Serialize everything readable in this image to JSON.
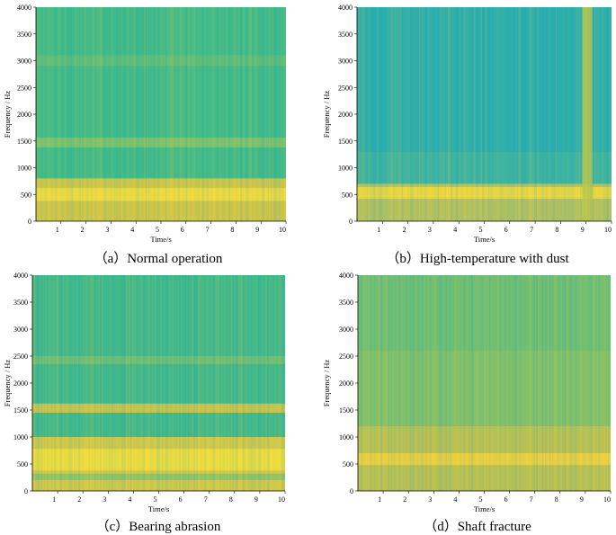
{
  "chart_data": [
    {
      "type": "heatmap",
      "id": "a",
      "caption": "（a）Normal operation",
      "xlabel": "Time/s",
      "ylabel": "Frequency / Hz",
      "xlim": [
        0,
        10
      ],
      "ylim": [
        0,
        4000
      ],
      "xticks": [
        1,
        2,
        3,
        4,
        5,
        6,
        7,
        8,
        9,
        10
      ],
      "yticks": [
        0,
        500,
        1000,
        1500,
        2000,
        2500,
        3000,
        3500,
        4000
      ],
      "base_color": "#3fbb8a",
      "bands": [
        {
          "from": 0,
          "to": 800,
          "color": "#f0c93a",
          "opacity": 0.85
        },
        {
          "from": 380,
          "to": 620,
          "color": "#ffe23c",
          "opacity": 0.8
        },
        {
          "from": 1380,
          "to": 1560,
          "color": "#a9c85a",
          "opacity": 0.6
        },
        {
          "from": 2900,
          "to": 3100,
          "color": "#8fc06a",
          "opacity": 0.4
        }
      ],
      "regions": []
    },
    {
      "type": "heatmap",
      "id": "b",
      "caption": "（b）High-temperature with dust",
      "xlabel": "Time/s",
      "ylabel": "Frequency / Hz",
      "xlim": [
        0,
        10
      ],
      "ylim": [
        0,
        4000
      ],
      "xticks": [
        1,
        2,
        3,
        4,
        5,
        6,
        7,
        8,
        9,
        10
      ],
      "yticks": [
        0,
        500,
        1000,
        1500,
        2000,
        2500,
        3000,
        3500,
        4000
      ],
      "base_color": "#2aaeb0",
      "bands": [
        {
          "from": 0,
          "to": 700,
          "color": "#e8c844",
          "opacity": 0.75
        },
        {
          "from": 420,
          "to": 640,
          "color": "#ffdf3a",
          "opacity": 0.8
        },
        {
          "from": 700,
          "to": 1300,
          "color": "#4cb898",
          "opacity": 0.5
        }
      ],
      "regions": [
        {
          "t0": 8.85,
          "t1": 9.25,
          "f0": 0,
          "f1": 4000,
          "color": "#c2c84a",
          "opacity": 0.85
        }
      ]
    },
    {
      "type": "heatmap",
      "id": "c",
      "caption": "（c）Bearing abrasion",
      "xlabel": "Time/s",
      "ylabel": "Frequency / Hz",
      "xlim": [
        0,
        10
      ],
      "ylim": [
        0,
        4000
      ],
      "xticks": [
        1,
        2,
        3,
        4,
        5,
        6,
        7,
        8,
        9,
        10
      ],
      "yticks": [
        0,
        500,
        1000,
        1500,
        2000,
        2500,
        3000,
        3500,
        4000
      ],
      "base_color": "#42b98c",
      "bands": [
        {
          "from": 0,
          "to": 1000,
          "color": "#f2cc3c",
          "opacity": 0.85
        },
        {
          "from": 380,
          "to": 780,
          "color": "#ffe43a",
          "opacity": 0.8
        },
        {
          "from": 200,
          "to": 320,
          "color": "#66c07a",
          "opacity": 0.55
        },
        {
          "from": 1450,
          "to": 1620,
          "color": "#eec840",
          "opacity": 0.8
        },
        {
          "from": 2350,
          "to": 2500,
          "color": "#9cc460",
          "opacity": 0.5
        }
      ],
      "regions": []
    },
    {
      "type": "heatmap",
      "id": "d",
      "caption": "（d）Shaft fracture",
      "xlabel": "Time/s",
      "ylabel": "Frequency / Hz",
      "xlim": [
        0,
        10
      ],
      "ylim": [
        0,
        4000
      ],
      "xticks": [
        1,
        2,
        3,
        4,
        5,
        6,
        7,
        8,
        9,
        10
      ],
      "yticks": [
        0,
        500,
        1000,
        1500,
        2000,
        2500,
        3000,
        3500,
        4000
      ],
      "base_color": "#6fbf74",
      "bands": [
        {
          "from": 0,
          "to": 1200,
          "color": "#d8c248",
          "opacity": 0.75
        },
        {
          "from": 480,
          "to": 700,
          "color": "#ffd53a",
          "opacity": 0.8
        },
        {
          "from": 1200,
          "to": 2600,
          "color": "#9cc360",
          "opacity": 0.45
        }
      ],
      "regions": []
    }
  ]
}
